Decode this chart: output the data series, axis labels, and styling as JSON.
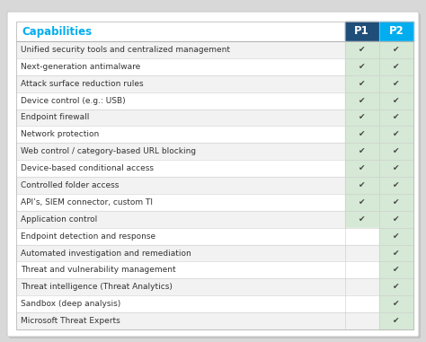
{
  "title": "Capabilities",
  "title_color": "#00ADEF",
  "col_headers": [
    "P1",
    "P2"
  ],
  "col_header_colors": [
    "#1F4E79",
    "#00ADEF"
  ],
  "rows": [
    {
      "label": "Unified security tools and centralized management",
      "p1": true,
      "p2": true
    },
    {
      "label": "Next-generation antimalware",
      "p1": true,
      "p2": true
    },
    {
      "label": "Attack surface reduction rules",
      "p1": true,
      "p2": true
    },
    {
      "label": "Device control (e.g.: USB)",
      "p1": true,
      "p2": true
    },
    {
      "label": "Endpoint firewall",
      "p1": true,
      "p2": true
    },
    {
      "label": "Network protection",
      "p1": true,
      "p2": true
    },
    {
      "label": "Web control / category-based URL blocking",
      "p1": true,
      "p2": true
    },
    {
      "label": "Device-based conditional access",
      "p1": true,
      "p2": true
    },
    {
      "label": "Controlled folder access",
      "p1": true,
      "p2": true
    },
    {
      "label": "API’s, SIEM connector, custom TI",
      "p1": true,
      "p2": true
    },
    {
      "label": "Application control",
      "p1": true,
      "p2": true
    },
    {
      "label": "Endpoint detection and response",
      "p1": false,
      "p2": true
    },
    {
      "label": "Automated investigation and remediation",
      "p1": false,
      "p2": true
    },
    {
      "label": "Threat and vulnerability management",
      "p1": false,
      "p2": true
    },
    {
      "label": "Threat intelligence (Threat Analytics)",
      "p1": false,
      "p2": true
    },
    {
      "label": "Sandbox (deep analysis)",
      "p1": false,
      "p2": true
    },
    {
      "label": "Microsoft Threat Experts",
      "p1": false,
      "p2": true
    }
  ],
  "row_bg_even": "#F2F2F2",
  "row_bg_odd": "#FFFFFF",
  "p1_col_bg": "#D6E8D6",
  "p2_col_bg": "#D6E8D6",
  "p1_col_bg_empty": "#EBEBEB",
  "check_color": "#444444",
  "label_color": "#333333",
  "label_fontsize": 6.5,
  "title_fontsize": 8.5,
  "col_header_fontsize": 8.5,
  "outer_bg": "#D8D8D8",
  "card_bg": "#FFFFFF",
  "card_edge": "#CCCCCC"
}
